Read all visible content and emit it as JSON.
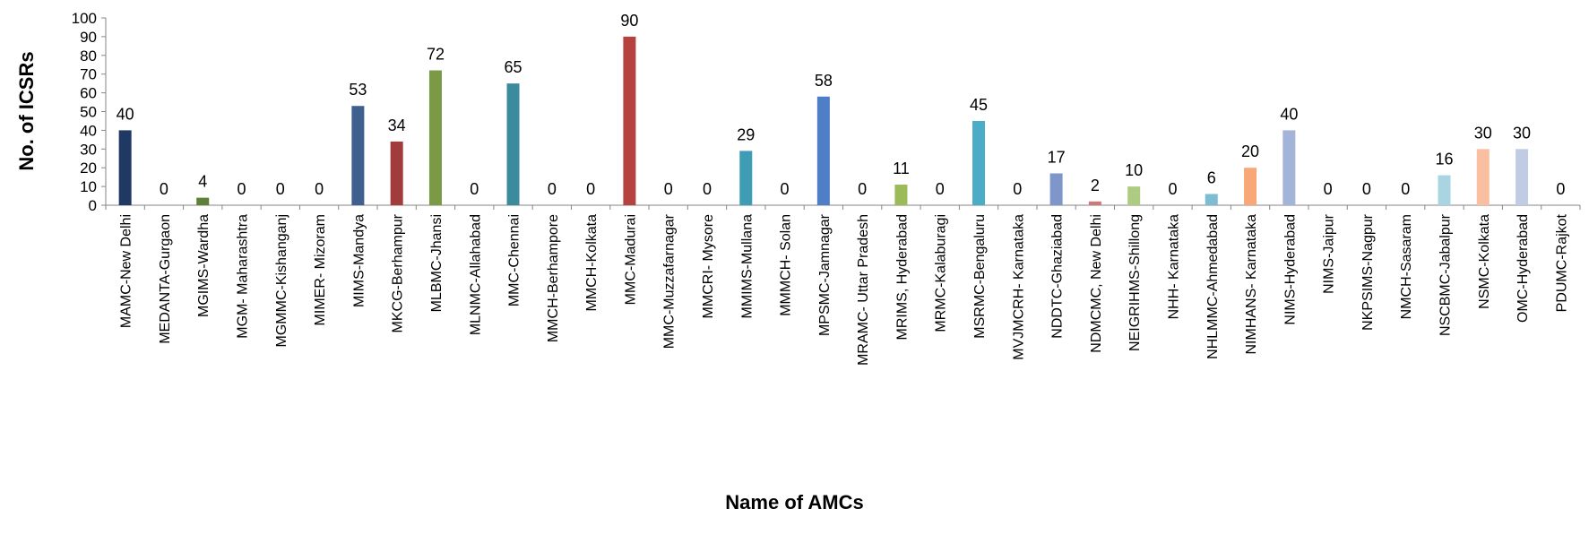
{
  "chart_data": {
    "type": "bar",
    "title": "",
    "xlabel": "Name of AMCs",
    "ylabel": "No. of ICSRs",
    "ylim": [
      0,
      100
    ],
    "yticks": [
      0,
      10,
      20,
      30,
      40,
      50,
      60,
      70,
      80,
      90,
      100
    ],
    "grid": false,
    "legend": "none",
    "data_labels": true,
    "categories": [
      "MAMC-New Delhi",
      "MEDANTA-Gurgaon",
      "MGIMS-Wardha",
      "MGM- Maharashtra",
      "MGMMC-Kishanganj",
      "MIMER- Mizoram",
      "MIMS-Mandya",
      "MKCG-Berhampur",
      "MLBMC-Jhansi",
      "MLNMC-Allahabad",
      "MMC-Chennai",
      "MMCH-Berhampore",
      "MMCH-Kolkata",
      "MMC-Madurai",
      "MMC-Muzzafarnagar",
      "MMCRI- Mysore",
      "MMIMS-Mullana",
      "MMMCH- Solan",
      "MPSMC-Jamnagar",
      "MRAMC- Uttar Pradesh",
      "MRIMS, Hyderabad",
      "MRMC-Kalaburagi",
      "MSRMC-Bengaluru",
      "MVJMCRH- Karnataka",
      "NDDTC-Ghaziabad",
      "NDMCMC, New Delhi",
      "NEIGRIHMS-Shillong",
      "NHH- Karnataka",
      "NHLMMC-Ahmedabad",
      "NIMHANS- Karnataka",
      "NIMS-Hyderabad",
      "NIMS-Jaipur",
      "NKPSIMS-Nagpur",
      "NMCH-Sasaram",
      "NSCBMC-Jabalpur",
      "NSMC-Kolkata",
      "OMC-Hyderabad",
      "PDUMC-Rajkot"
    ],
    "values": [
      40,
      0,
      4,
      0,
      0,
      0,
      53,
      34,
      72,
      0,
      65,
      0,
      0,
      90,
      0,
      0,
      29,
      0,
      58,
      0,
      11,
      0,
      45,
      0,
      17,
      2,
      10,
      0,
      6,
      20,
      40,
      0,
      0,
      0,
      16,
      30,
      30,
      0
    ],
    "colors": [
      "#1F3864",
      "#7A2E2C",
      "#5E8038",
      "#4B3A6E",
      "#2B7F8F",
      "#C0601E",
      "#3F5F8F",
      "#A23B3B",
      "#7A9A45",
      "#67508A",
      "#3C8A9E",
      "#D9812F",
      "#5A7FB8",
      "#B5423F",
      "#94B25A",
      "#7F66A8",
      "#3E9DB5",
      "#E89A4F",
      "#4F7EC7",
      "#C65050",
      "#9BBB59",
      "#8064A2",
      "#4BACC6",
      "#F79646",
      "#7E96C9",
      "#CF7878",
      "#ADCC82",
      "#9E8AC2",
      "#7DBCD2",
      "#F8A878",
      "#A4B4D8",
      "#DBA2A2",
      "#C4DBA6",
      "#BDB0D6",
      "#A9D4E2",
      "#F9BFA0",
      "#BFCCE4",
      "#E0B0B0"
    ]
  }
}
